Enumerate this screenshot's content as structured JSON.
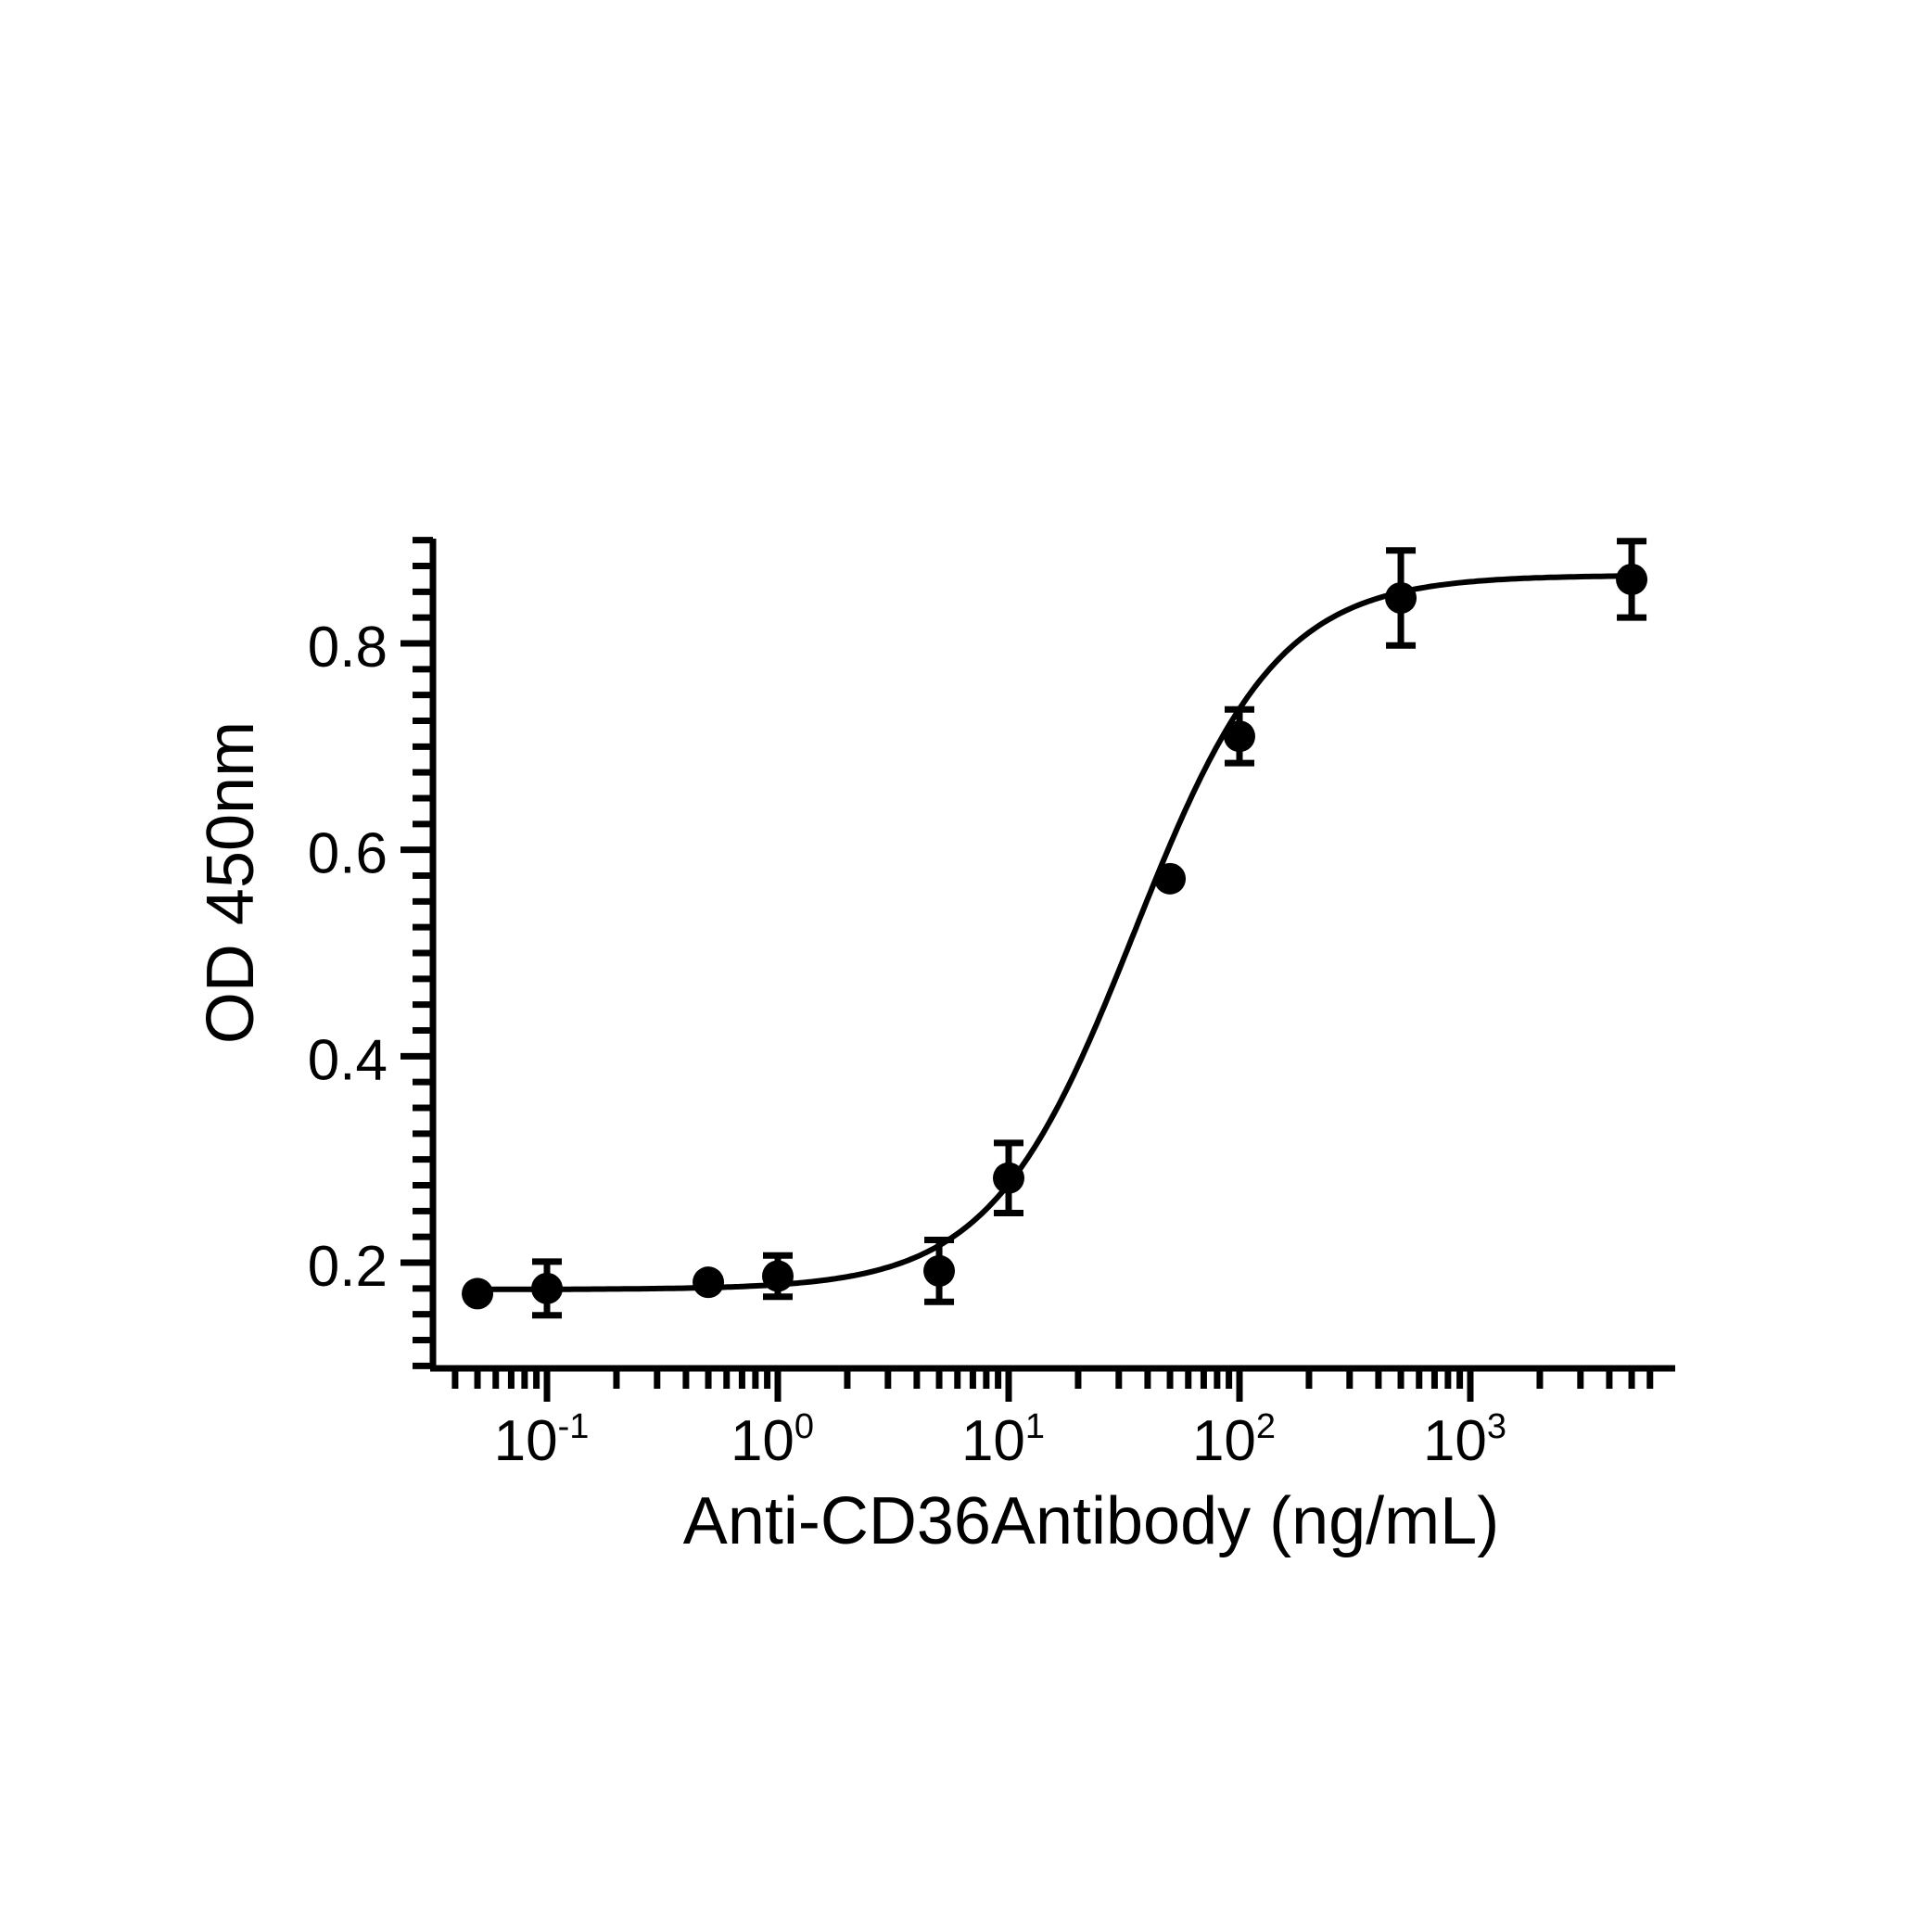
{
  "chart_data": {
    "type": "scatter",
    "xlabel": "Anti-CD36Antibody (ng/mL)",
    "ylabel": "OD 450nm",
    "xscale": "log",
    "xlim": [
      0.035,
      6500
    ],
    "ylim": [
      0.1,
      0.9
    ],
    "grid": false,
    "legend": "none",
    "x_ticks": [
      {
        "base": "10",
        "exp": "-1",
        "value": 0.1
      },
      {
        "base": "10",
        "exp": "0",
        "value": 1
      },
      {
        "base": "10",
        "exp": "1",
        "value": 10
      },
      {
        "base": "10",
        "exp": "2",
        "value": 100
      },
      {
        "base": "10",
        "exp": "3",
        "value": 1000
      }
    ],
    "y_ticks": [
      {
        "label": "0.2",
        "value": 0.2
      },
      {
        "label": "0.4",
        "value": 0.4
      },
      {
        "label": "0.6",
        "value": 0.6
      },
      {
        "label": "0.8",
        "value": 0.8
      }
    ],
    "points": [
      {
        "x": 0.05,
        "y": 0.17,
        "err": 0
      },
      {
        "x": 0.1,
        "y": 0.175,
        "err": 0.026
      },
      {
        "x": 0.5,
        "y": 0.181,
        "err": 0
      },
      {
        "x": 1,
        "y": 0.187,
        "err": 0.02
      },
      {
        "x": 5,
        "y": 0.192,
        "err": 0.03
      },
      {
        "x": 10,
        "y": 0.282,
        "err": 0.034
      },
      {
        "x": 50,
        "y": 0.572,
        "err": 0
      },
      {
        "x": 100,
        "y": 0.71,
        "err": 0.026
      },
      {
        "x": 500,
        "y": 0.844,
        "err": 0.046
      },
      {
        "x": 5000,
        "y": 0.862,
        "err": 0.037
      }
    ],
    "fit": {
      "model": "4PL",
      "bottom": 0.174,
      "top": 0.866,
      "ec50": 35,
      "hill": 1.4
    },
    "colors": {
      "marker": "#000000",
      "line": "#000000"
    }
  }
}
